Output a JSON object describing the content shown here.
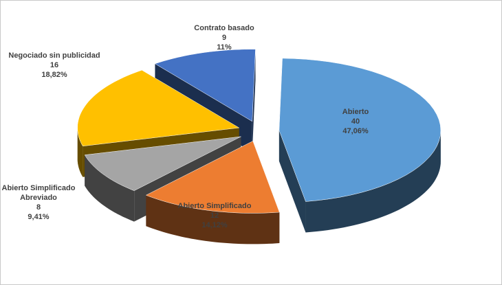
{
  "chart_data": {
    "type": "pie3d",
    "categories": [
      "Abierto",
      "Abierto Simplificado",
      "Abierto Simplificado Abreviado",
      "Negociado sin publicidad",
      "Contrato basado"
    ],
    "values": [
      40,
      12,
      8,
      16,
      9
    ],
    "percentages": [
      {
        "value": 47.06,
        "label": "47,06%"
      },
      {
        "value": 14.12,
        "label": "14,12%"
      },
      {
        "value": 9.41,
        "label": "9,41%"
      },
      {
        "value": 18.82,
        "label": "18,82%"
      },
      {
        "value": 11,
        "label": "11%"
      }
    ],
    "colors": [
      "#5b9bd5",
      "#ed7d31",
      "#a5a5a5",
      "#ffc000",
      "#4472c4"
    ]
  }
}
